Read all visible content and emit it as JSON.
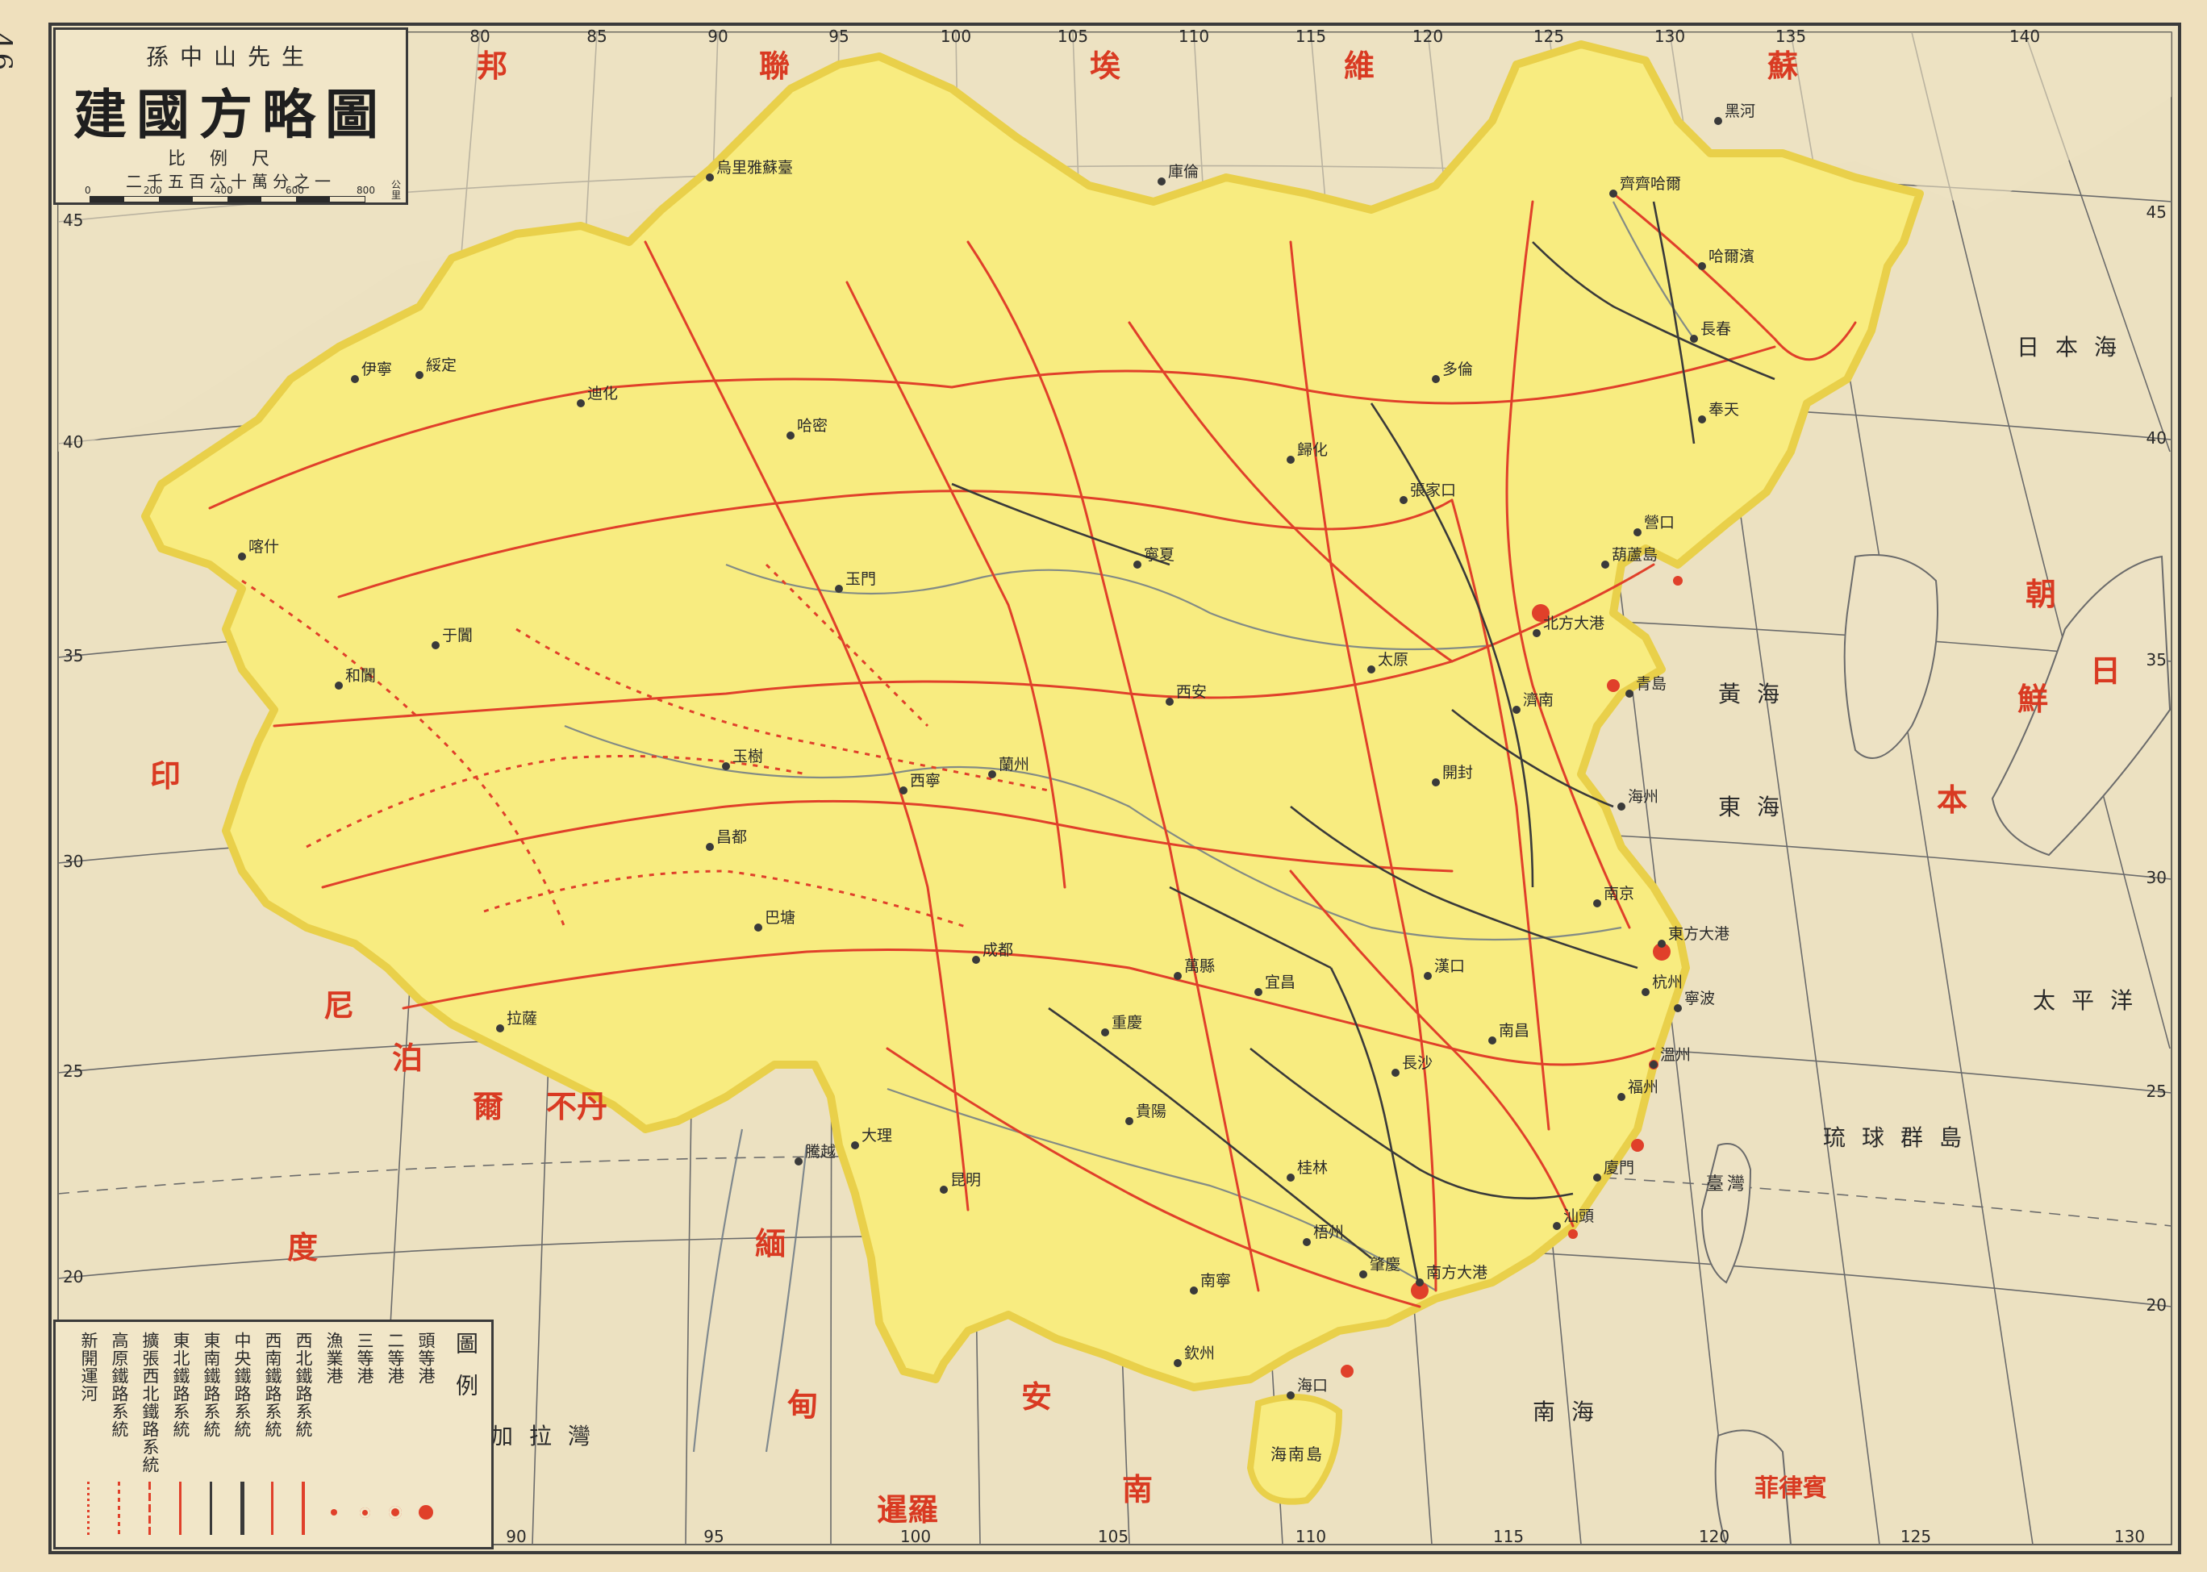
{
  "page_number": "46",
  "title_box": {
    "author": "孫中山先生",
    "title": "建國方略圖",
    "scale_heading": "比例尺",
    "scale_ratio": "二千五百六十萬分之一",
    "scale_ticks": [
      "0",
      "200",
      "400",
      "600",
      "800"
    ],
    "scale_unit": "公里"
  },
  "longitudes_top": [
    "80",
    "85",
    "90",
    "95",
    "100",
    "105",
    "110",
    "115",
    "120",
    "125",
    "130",
    "135",
    "140"
  ],
  "longitudes_bottom": [
    "90",
    "95",
    "100",
    "105",
    "110",
    "115",
    "120",
    "125",
    "130"
  ],
  "latitudes_left": [
    "45",
    "40",
    "35",
    "30",
    "25",
    "20"
  ],
  "latitudes_right": [
    "45",
    "40",
    "35",
    "30",
    "25",
    "20"
  ],
  "neighbor_labels": [
    {
      "name": "soviet-1",
      "text": "蘇"
    },
    {
      "name": "soviet-2",
      "text": "維"
    },
    {
      "name": "soviet-3",
      "text": "埃"
    },
    {
      "name": "soviet-4",
      "text": "聯"
    },
    {
      "name": "soviet-5",
      "text": "邦"
    },
    {
      "name": "korea-1",
      "text": "朝"
    },
    {
      "name": "korea-2",
      "text": "鮮"
    },
    {
      "name": "japan-1",
      "text": "日"
    },
    {
      "name": "japan-2",
      "text": "本"
    },
    {
      "name": "india-1",
      "text": "印"
    },
    {
      "name": "india-2",
      "text": "度"
    },
    {
      "name": "nepal-1",
      "text": "尼"
    },
    {
      "name": "nepal-2",
      "text": "泊"
    },
    {
      "name": "nepal-3",
      "text": "爾"
    },
    {
      "name": "bhutan",
      "text": "不丹"
    },
    {
      "name": "burma-1",
      "text": "緬"
    },
    {
      "name": "burma-2",
      "text": "甸"
    },
    {
      "name": "annam-1",
      "text": "安"
    },
    {
      "name": "annam-2",
      "text": "南"
    },
    {
      "name": "siam",
      "text": "暹羅"
    },
    {
      "name": "philippines",
      "text": "菲律賓"
    }
  ],
  "water_labels": [
    {
      "name": "east-sea",
      "text": "東海"
    },
    {
      "name": "yellow-sea",
      "text": "黃海"
    },
    {
      "name": "japan-sea",
      "text": "日本海"
    },
    {
      "name": "south-sea",
      "text": "南海"
    },
    {
      "name": "pacific",
      "text": "太平洋"
    },
    {
      "name": "ryukyu",
      "text": "琉球群島"
    },
    {
      "name": "bengal",
      "text": "孟加拉灣"
    },
    {
      "name": "taiwan",
      "text": "臺灣"
    },
    {
      "name": "hainan",
      "text": "海南島"
    }
  ],
  "legend": {
    "title": "圖例",
    "items": [
      {
        "label": "頭等港",
        "symbol": "port-1"
      },
      {
        "label": "二等港",
        "symbol": "port-2"
      },
      {
        "label": "三等港",
        "symbol": "port-3"
      },
      {
        "label": "漁業港",
        "symbol": "port-4"
      },
      {
        "label": "西北鐵路系統",
        "symbol": "rail-nw"
      },
      {
        "label": "西南鐵路系統",
        "symbol": "rail-sw"
      },
      {
        "label": "中央鐵路系統",
        "symbol": "rail-central"
      },
      {
        "label": "東南鐵路系統",
        "symbol": "rail-se"
      },
      {
        "label": "東北鐵路系統",
        "symbol": "rail-ne"
      },
      {
        "label": "擴張西北鐵路系統",
        "symbol": "rail-nw-ext"
      },
      {
        "label": "高原鐵路系統",
        "symbol": "rail-plateau"
      },
      {
        "label": "新開運河",
        "symbol": "canal"
      }
    ]
  },
  "cities": [
    {
      "name": "city-beijing",
      "text": "北方大港"
    },
    {
      "name": "city-shanghai",
      "text": "東方大港"
    },
    {
      "name": "city-guangzhou",
      "text": "南方大港"
    },
    {
      "name": "city-hankou",
      "text": "漢口"
    },
    {
      "name": "city-xian",
      "text": "西安"
    },
    {
      "name": "city-lanzhou",
      "text": "蘭州"
    },
    {
      "name": "city-chengdu",
      "text": "成都"
    },
    {
      "name": "city-kunming",
      "text": "昆明"
    },
    {
      "name": "city-lhasa",
      "text": "拉薩"
    },
    {
      "name": "city-dihua",
      "text": "迪化"
    },
    {
      "name": "city-kashgar",
      "text": "喀什"
    },
    {
      "name": "city-harbin",
      "text": "哈爾濱"
    },
    {
      "name": "city-changchun",
      "text": "長春"
    },
    {
      "name": "city-guihua",
      "text": "歸化"
    },
    {
      "name": "city-kulun",
      "text": "庫倫"
    },
    {
      "name": "city-wulumuqi",
      "text": "烏里雅蘇臺"
    },
    {
      "name": "city-hami",
      "text": "哈密"
    },
    {
      "name": "city-xining",
      "text": "西寧"
    },
    {
      "name": "city-guiyang",
      "text": "貴陽"
    },
    {
      "name": "city-changsha",
      "text": "長沙"
    },
    {
      "name": "city-nanchang",
      "text": "南昌"
    },
    {
      "name": "city-fuzhou",
      "text": "福州"
    },
    {
      "name": "city-hangzhou",
      "text": "杭州"
    },
    {
      "name": "city-jinan",
      "text": "濟南"
    },
    {
      "name": "city-taiyuan",
      "text": "太原"
    },
    {
      "name": "city-kaifeng",
      "text": "開封"
    },
    {
      "name": "city-nanjing",
      "text": "南京"
    },
    {
      "name": "city-mukden",
      "text": "奉天"
    },
    {
      "name": "city-qiqihar",
      "text": "齊齊哈爾"
    },
    {
      "name": "city-chongqing",
      "text": "重慶"
    },
    {
      "name": "city-nanning",
      "text": "南寧"
    },
    {
      "name": "city-guilin",
      "text": "桂林"
    },
    {
      "name": "city-ningxia",
      "text": "寧夏"
    },
    {
      "name": "city-yumen",
      "text": "玉門"
    },
    {
      "name": "city-hotan",
      "text": "和闐"
    },
    {
      "name": "city-yining",
      "text": "伊寧"
    },
    {
      "name": "city-zhangjiakou",
      "text": "張家口"
    },
    {
      "name": "city-dolon",
      "text": "多倫"
    },
    {
      "name": "city-heihe",
      "text": "黑河"
    },
    {
      "name": "city-ili",
      "text": "綏定"
    },
    {
      "name": "city-amoy",
      "text": "廈門"
    },
    {
      "name": "city-shantou",
      "text": "汕頭"
    },
    {
      "name": "city-qingdao",
      "text": "青島"
    },
    {
      "name": "city-yingkou",
      "text": "營口"
    },
    {
      "name": "city-hulutao",
      "text": "葫蘆島"
    },
    {
      "name": "city-haizhou",
      "text": "海州"
    },
    {
      "name": "city-ningbo",
      "text": "寧波"
    },
    {
      "name": "city-wenzhou",
      "text": "溫州"
    },
    {
      "name": "city-haikou",
      "text": "海口"
    },
    {
      "name": "city-qinzhou",
      "text": "欽州"
    },
    {
      "name": "city-yichang",
      "text": "宜昌"
    },
    {
      "name": "city-wanxian",
      "text": "萬縣"
    },
    {
      "name": "city-batang",
      "text": "巴塘"
    },
    {
      "name": "city-changdu",
      "text": "昌都"
    },
    {
      "name": "city-yushu",
      "text": "玉樹"
    },
    {
      "name": "city-keriya",
      "text": "于闐"
    },
    {
      "name": "city-dali",
      "text": "大理"
    },
    {
      "name": "city-tengyue",
      "text": "騰越"
    },
    {
      "name": "city-zhaoqing",
      "text": "肇慶"
    },
    {
      "name": "city-wuzhou",
      "text": "梧州"
    }
  ],
  "colors": {
    "paper": "#efe0bd",
    "land_china": "#f8ec80",
    "land_china_edge": "#e9d04a",
    "sea": "#e7dcbc",
    "rail_red": "#e0402a",
    "rail_dark": "#3a3a3a",
    "grid": "#6b6b6b",
    "label_red": "#d93a22",
    "text_dark": "#2a2a2a"
  }
}
